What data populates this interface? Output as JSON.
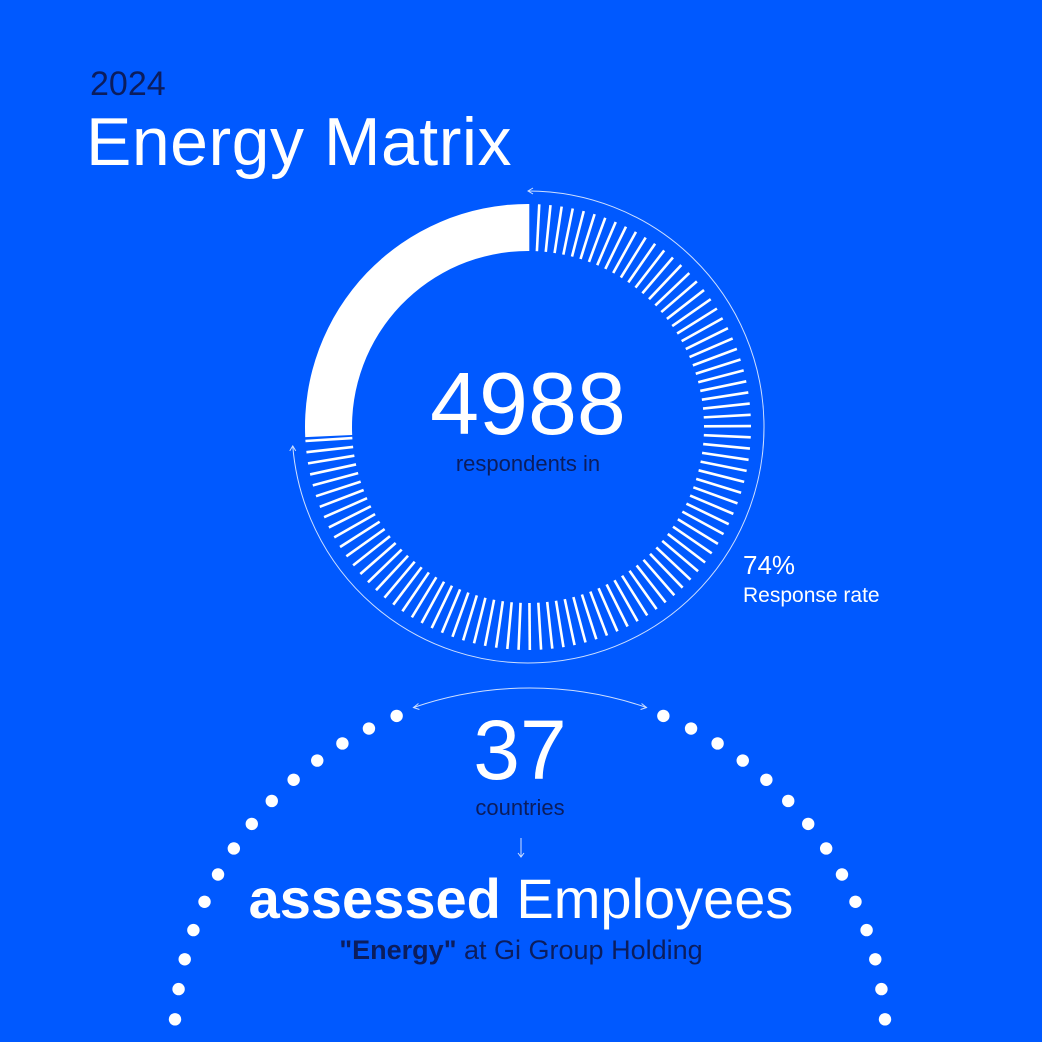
{
  "header": {
    "year": "2024",
    "title": "Energy Matrix"
  },
  "respondents": {
    "count": "4988",
    "label": "respondents in"
  },
  "response_rate": {
    "value": "74%",
    "label": "Response rate",
    "fraction": 0.74
  },
  "countries": {
    "count": "37",
    "label": "countries"
  },
  "employees": {
    "bold": "assessed",
    "light": "Employees"
  },
  "subtitle": {
    "quoted": "\"Energy\"",
    "rest": " at Gi Group Holding"
  },
  "colors": {
    "background": "#0059ff",
    "accent_text": "#0b1d5e",
    "foreground": "#ffffff"
  },
  "icons": [
    "arc-arrow-icon",
    "down-arrow-icon"
  ]
}
